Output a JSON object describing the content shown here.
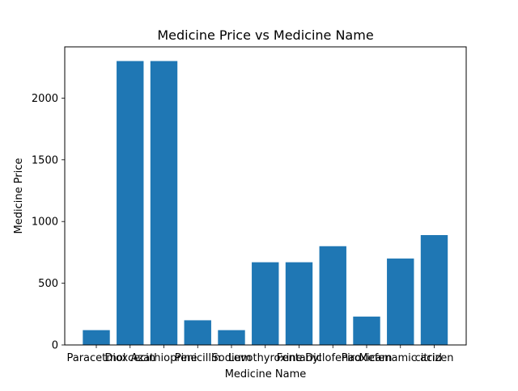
{
  "chart_data": {
    "type": "bar",
    "title": "Medicine Price vs Medicine Name",
    "xlabel": "Medicine Name",
    "ylabel": "Medicine Price",
    "categories": [
      "Paracetmol",
      "Dioxcecin",
      "Azathioprine",
      "Penicillin",
      "Sodium",
      "Levothyroxine",
      "Fentanyl",
      "Diclofenac",
      "Piroxicam",
      "Mefenamic acid",
      "citrizen"
    ],
    "values": [
      120,
      2300,
      2300,
      200,
      120,
      670,
      670,
      800,
      230,
      700,
      890
    ],
    "ylim": [
      0,
      2415
    ],
    "yticks": [
      0,
      500,
      1000,
      1500,
      2000
    ],
    "grid": false,
    "bar_color": "#1f77b4",
    "axis_color": "#000000",
    "background": "#ffffff"
  }
}
